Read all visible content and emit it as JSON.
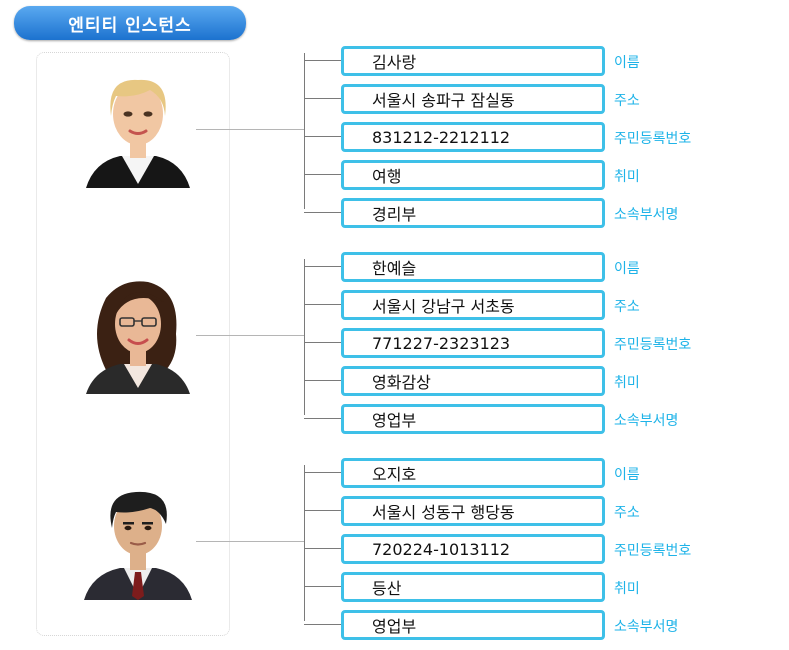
{
  "title": "엔티티 인스턴스",
  "colors": {
    "accent": "#3ec0e8",
    "label": "#1eb3e8",
    "title_bg": "#1c72cf"
  },
  "entities": [
    {
      "avatar": "blonde-woman-avatar",
      "attributes": [
        {
          "value": "김사랑",
          "label": "이름"
        },
        {
          "value": "서울시 송파구 잠실동",
          "label": "주소"
        },
        {
          "value": "831212-2212112",
          "label": "주민등록번호"
        },
        {
          "value": "여행",
          "label": "취미"
        },
        {
          "value": "경리부",
          "label": "소속부서명"
        }
      ]
    },
    {
      "avatar": "brunette-woman-with-glasses-avatar",
      "attributes": [
        {
          "value": "한예슬",
          "label": "이름"
        },
        {
          "value": "서울시 강남구 서초동",
          "label": "주소"
        },
        {
          "value": "771227-2323123",
          "label": "주민등록번호"
        },
        {
          "value": "영화감상",
          "label": "취미"
        },
        {
          "value": "영업부",
          "label": "소속부서명"
        }
      ]
    },
    {
      "avatar": "man-in-suit-avatar",
      "attributes": [
        {
          "value": "오지호",
          "label": "이름"
        },
        {
          "value": "서울시 성동구 행당동",
          "label": "주소"
        },
        {
          "value": "720224-1013112",
          "label": "주민등록번호"
        },
        {
          "value": "등산",
          "label": "취미"
        },
        {
          "value": "영업부",
          "label": "소속부서명"
        }
      ]
    }
  ]
}
